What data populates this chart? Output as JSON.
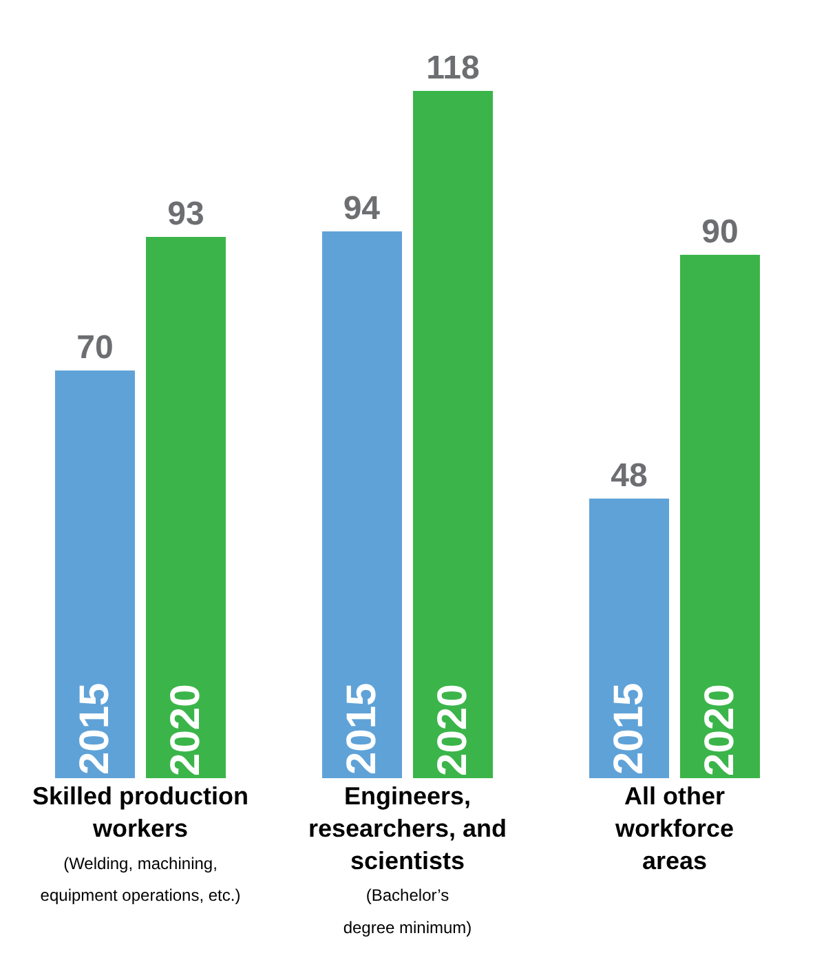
{
  "chart_data": {
    "type": "bar",
    "categories": [
      "Skilled production workers",
      "Engineers, researchers, and scientists",
      "All other workforce areas"
    ],
    "series": [
      {
        "name": "2015",
        "color": "#5fa2d8",
        "values": [
          70,
          94,
          48
        ]
      },
      {
        "name": "2020",
        "color": "#3bb54a",
        "values": [
          93,
          118,
          90
        ]
      }
    ],
    "annotations": [
      "(Welding, machining, equipment operations, etc.)",
      "(Bachelor’s degree minimum)"
    ],
    "data_labels": true,
    "legend": false
  }
}
